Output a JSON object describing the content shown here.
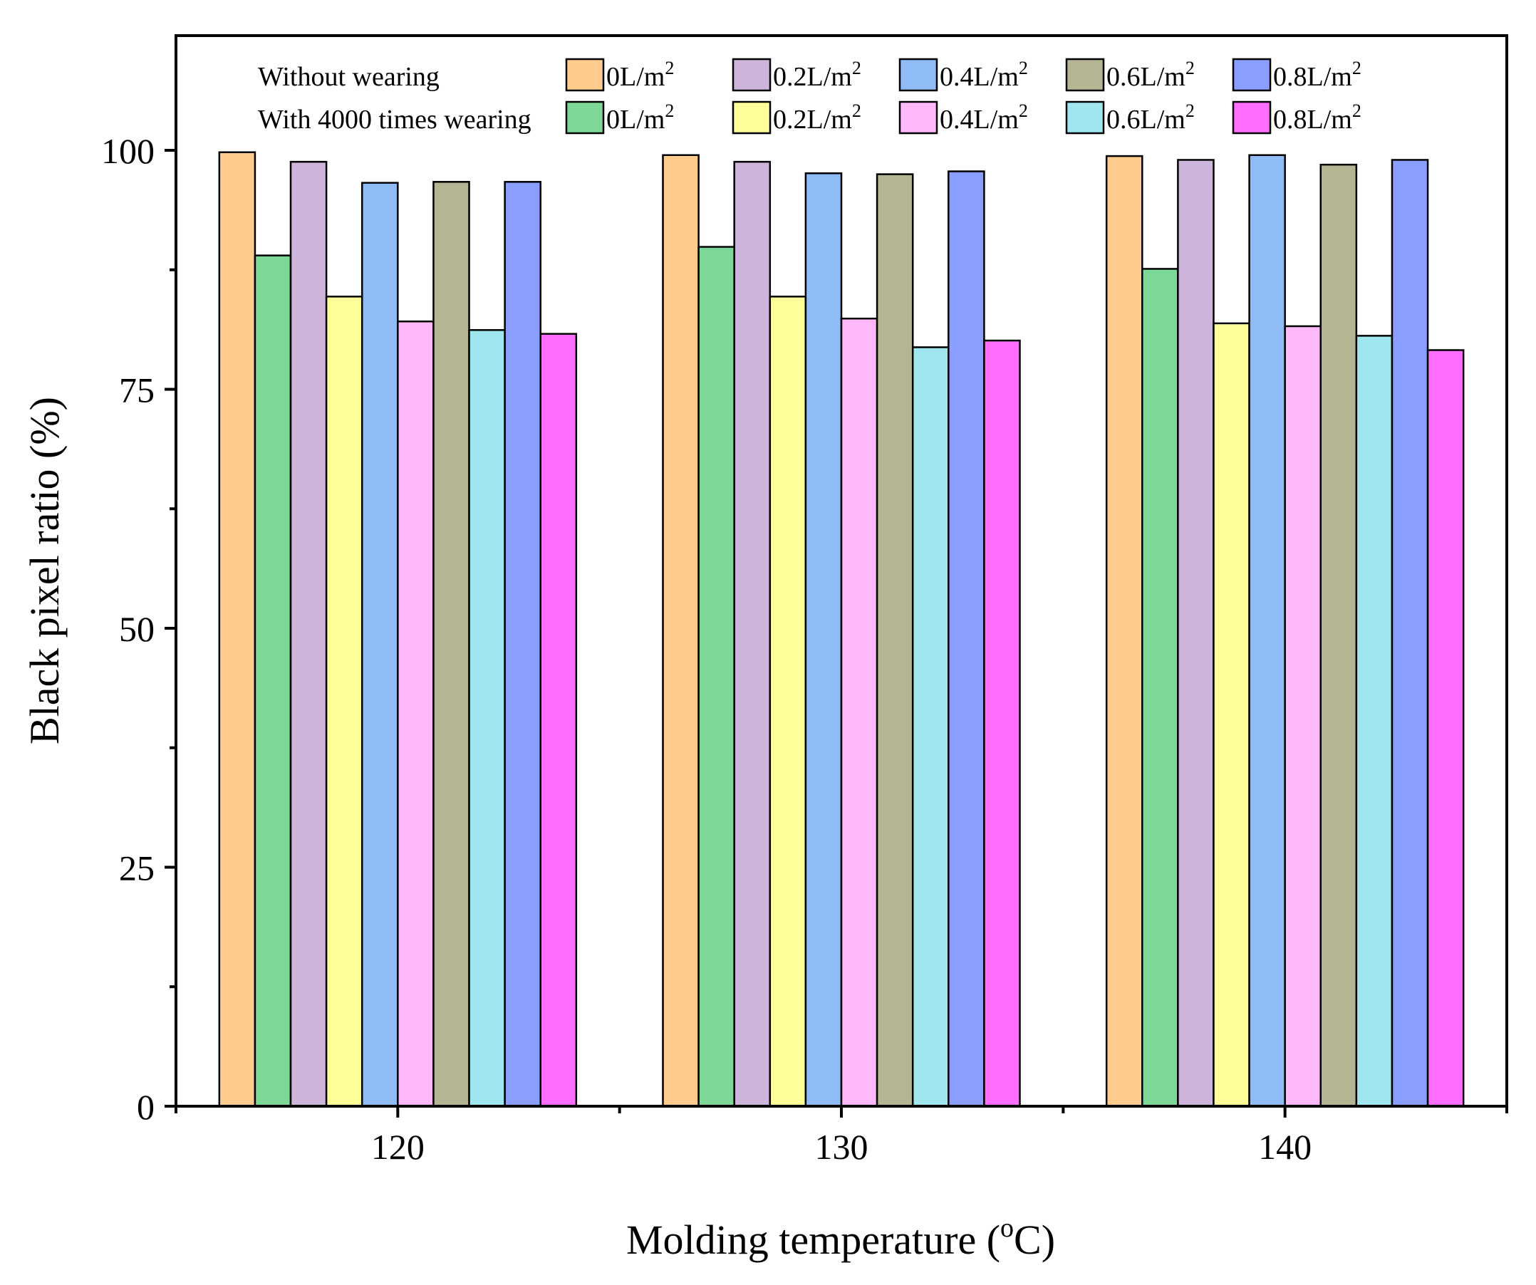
{
  "chart_data": {
    "type": "bar",
    "xlabel": "Molding temperature (",
    "xlabel_deg_sup": "o",
    "xlabel_tail": "C)",
    "ylabel": "Black pixel ratio (%)",
    "ylim": [
      0,
      112
    ],
    "yticks": [
      0,
      25,
      50,
      75,
      100
    ],
    "yticks_minor": [
      12.5,
      37.5,
      62.5,
      87.5
    ],
    "categories": [
      "120",
      "130",
      "140"
    ],
    "legend": {
      "group_without": "Without wearing",
      "group_with": "With 4000 times wearing",
      "unit_sup": "2"
    },
    "series": [
      {
        "name": "0L/m",
        "group": "Without wearing",
        "color": "#FFCC8E",
        "values": [
          99.8,
          99.5,
          99.4
        ]
      },
      {
        "name": "0L/m",
        "group": "With 4000 times wearing",
        "color": "#7DD898",
        "values": [
          89.0,
          89.9,
          87.6
        ]
      },
      {
        "name": "0.2L/m",
        "group": "Without wearing",
        "color": "#CDB4DA",
        "values": [
          98.8,
          98.8,
          99.0
        ]
      },
      {
        "name": "0.2L/m",
        "group": "With 4000 times wearing",
        "color": "#FFFF99",
        "values": [
          84.7,
          84.7,
          81.9
        ]
      },
      {
        "name": "0.4L/m",
        "group": "Without wearing",
        "color": "#8FBBF6",
        "values": [
          96.6,
          97.6,
          99.5
        ]
      },
      {
        "name": "0.4L/m",
        "group": "With 4000 times wearing",
        "color": "#FFB8F9",
        "values": [
          82.1,
          82.4,
          81.6
        ]
      },
      {
        "name": "0.6L/m",
        "group": "Without wearing",
        "color": "#B5B593",
        "values": [
          96.7,
          97.5,
          98.5
        ]
      },
      {
        "name": "0.6L/m",
        "group": "With 4000 times wearing",
        "color": "#A0E6EF",
        "values": [
          81.2,
          79.4,
          80.6
        ]
      },
      {
        "name": "0.8L/m",
        "group": "Without wearing",
        "color": "#8A9EFF",
        "values": [
          96.7,
          97.8,
          99.0
        ]
      },
      {
        "name": "0.8L/m",
        "group": "With 4000 times wearing",
        "color": "#FF6EFF",
        "values": [
          80.8,
          80.1,
          79.1
        ]
      }
    ]
  }
}
